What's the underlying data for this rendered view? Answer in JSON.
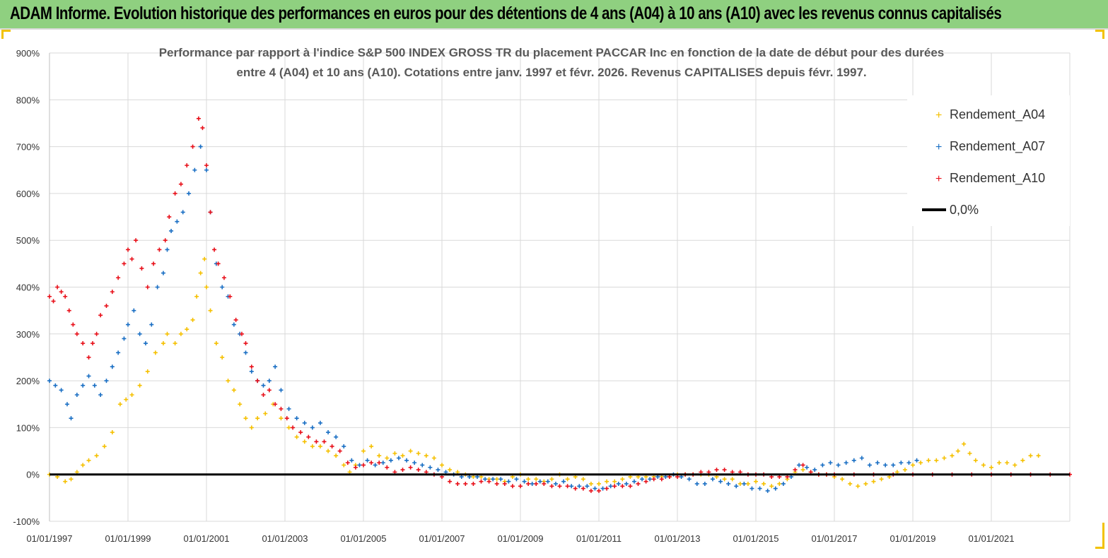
{
  "banner": {
    "title": "ADAM Informe. Evolution historique des performances en euros pour des détentions de 4 ans (A04) à 10 ans (A10) avec les revenus connus capitalisés"
  },
  "colors": {
    "banner_bg": "#8fd080",
    "A04": "#f5c000",
    "A07": "#1a6fc4",
    "A10": "#e8101a",
    "zero": "#000000",
    "grid": "#d9d9d9"
  },
  "chart_data": {
    "type": "scatter",
    "title_lines": [
      "Performance par rapport à l'indice S&P 500 INDEX GROSS TR  du placement PACCAR Inc en fonction de la date de début pour des durées",
      "entre 4 (A04) et 10 ans (A10).  Cotations entre janv. 1997 et févr. 2026. Revenus CAPITALISES depuis févr. 1997."
    ],
    "y_ticks": [
      "900%",
      "800%",
      "700%",
      "600%",
      "500%",
      "400%",
      "300%",
      "200%",
      "100%",
      "0%",
      "-100%"
    ],
    "x_ticks": [
      "01/01/1997",
      "01/01/1999",
      "01/01/2001",
      "01/01/2003",
      "01/01/2005",
      "01/01/2007",
      "01/01/2009",
      "01/01/2011",
      "01/01/2013",
      "01/01/2015",
      "01/01/2017",
      "01/01/2019",
      "01/01/2021"
    ],
    "ylim": [
      -100,
      900
    ],
    "xlim": [
      1997.0,
      2023.0
    ],
    "grid": true,
    "legend_position": "top-right",
    "legend": [
      "Rendement_A04",
      "Rendement_A07",
      "Rendement_A10",
      "0,0%"
    ],
    "series": [
      {
        "name": "Rendement_A04",
        "x": [
          1997.0,
          1997.2,
          1997.4,
          1997.55,
          1997.7,
          1997.85,
          1998.0,
          1998.2,
          1998.4,
          1998.6,
          1998.8,
          1998.95,
          1999.1,
          1999.3,
          1999.5,
          1999.7,
          1999.9,
          2000.0,
          2000.2,
          2000.35,
          2000.5,
          2000.65,
          2000.75,
          2000.85,
          2000.95,
          2001.0,
          2001.1,
          2001.25,
          2001.4,
          2001.55,
          2001.7,
          2001.85,
          2002.0,
          2002.15,
          2002.3,
          2002.5,
          2002.7,
          2002.9,
          2003.1,
          2003.3,
          2003.5,
          2003.7,
          2003.9,
          2004.1,
          2004.3,
          2004.5,
          2004.65,
          2004.8,
          2005.0,
          2005.2,
          2005.4,
          2005.6,
          2005.8,
          2006.0,
          2006.2,
          2006.4,
          2006.6,
          2006.8,
          2007.0,
          2007.2,
          2007.4,
          2007.6,
          2007.8,
          2008.0,
          2008.2,
          2008.4,
          2008.6,
          2008.8,
          2009.0,
          2009.2,
          2009.4,
          2009.6,
          2009.8,
          2010.0,
          2010.2,
          2010.4,
          2010.6,
          2010.8,
          2011.0,
          2011.2,
          2011.4,
          2011.6,
          2011.8,
          2012.0,
          2012.2,
          2012.4,
          2012.6,
          2012.8,
          2013.0,
          2013.2,
          2013.4,
          2013.6,
          2013.8,
          2014.0,
          2014.2,
          2014.4,
          2014.6,
          2014.8,
          2015.0,
          2015.2,
          2015.4,
          2015.6,
          2015.8,
          2016.0,
          2016.2,
          2016.4,
          2016.6,
          2016.8,
          2017.0,
          2017.2,
          2017.4,
          2017.6,
          2017.8,
          2018.0,
          2018.2,
          2018.4,
          2018.6,
          2018.8,
          2019.0,
          2019.2,
          2019.4,
          2019.6,
          2019.8,
          2020.0,
          2020.15,
          2020.3,
          2020.45,
          2020.6,
          2020.8,
          2021.0,
          2021.2,
          2021.4,
          2021.6,
          2021.8,
          2022.0,
          2022.2
        ],
        "y": [
          0,
          -5,
          -15,
          -10,
          5,
          20,
          30,
          40,
          60,
          90,
          150,
          160,
          170,
          190,
          220,
          260,
          280,
          300,
          280,
          300,
          310,
          330,
          380,
          430,
          460,
          400,
          350,
          280,
          250,
          200,
          180,
          150,
          120,
          100,
          120,
          130,
          150,
          120,
          100,
          80,
          70,
          60,
          60,
          50,
          40,
          20,
          5,
          20,
          50,
          60,
          40,
          35,
          45,
          40,
          50,
          45,
          40,
          35,
          20,
          10,
          5,
          0,
          -5,
          -5,
          -10,
          -10,
          -15,
          -5,
          0,
          -10,
          -10,
          -15,
          -10,
          0,
          -10,
          -5,
          -10,
          -20,
          -20,
          -15,
          -15,
          -10,
          -5,
          -5,
          -5,
          -5,
          -5,
          -5,
          0,
          0,
          0,
          0,
          0,
          -5,
          -10,
          -10,
          -20,
          -20,
          -15,
          -20,
          -25,
          -20,
          -10,
          5,
          10,
          5,
          0,
          0,
          -5,
          -10,
          -20,
          -25,
          -20,
          -15,
          -10,
          -5,
          5,
          10,
          20,
          25,
          30,
          30,
          35,
          40,
          50,
          65,
          45,
          30,
          20,
          15,
          25,
          25,
          20,
          30,
          40,
          40
        ]
      },
      {
        "name": "Rendement_A07",
        "x": [
          1997.0,
          1997.15,
          1997.3,
          1997.45,
          1997.55,
          1997.7,
          1997.85,
          1998.0,
          1998.15,
          1998.3,
          1998.45,
          1998.6,
          1998.75,
          1998.9,
          1999.0,
          1999.15,
          1999.3,
          1999.45,
          1999.6,
          1999.75,
          1999.9,
          2000.0,
          2000.1,
          2000.25,
          2000.4,
          2000.55,
          2000.7,
          2000.85,
          2001.0,
          2001.1,
          2001.25,
          2001.4,
          2001.55,
          2001.7,
          2001.85,
          2002.0,
          2002.15,
          2002.3,
          2002.45,
          2002.6,
          2002.75,
          2002.9,
          2003.1,
          2003.3,
          2003.5,
          2003.7,
          2003.9,
          2004.1,
          2004.3,
          2004.5,
          2004.7,
          2004.9,
          2005.1,
          2005.3,
          2005.5,
          2005.7,
          2005.9,
          2006.1,
          2006.3,
          2006.5,
          2006.7,
          2006.9,
          2007.1,
          2007.3,
          2007.5,
          2007.7,
          2007.9,
          2008.1,
          2008.3,
          2008.5,
          2008.7,
          2008.9,
          2009.1,
          2009.3,
          2009.5,
          2009.7,
          2009.9,
          2010.1,
          2010.3,
          2010.5,
          2010.7,
          2010.9,
          2011.1,
          2011.3,
          2011.5,
          2011.7,
          2011.9,
          2012.1,
          2012.3,
          2012.5,
          2012.7,
          2012.9,
          2013.1,
          2013.3,
          2013.5,
          2013.7,
          2013.9,
          2014.1,
          2014.3,
          2014.5,
          2014.7,
          2014.9,
          2015.1,
          2015.3,
          2015.5,
          2015.7,
          2015.9,
          2016.1,
          2016.3,
          2016.5,
          2016.7,
          2016.9,
          2017.1,
          2017.3,
          2017.5,
          2017.7,
          2017.9,
          2018.1,
          2018.3,
          2018.5,
          2018.7,
          2018.9,
          2019.1
        ],
        "y": [
          200,
          190,
          180,
          150,
          120,
          170,
          190,
          210,
          190,
          170,
          200,
          230,
          260,
          290,
          320,
          350,
          300,
          280,
          320,
          400,
          430,
          480,
          520,
          540,
          560,
          600,
          650,
          700,
          650,
          560,
          450,
          400,
          380,
          320,
          300,
          260,
          220,
          200,
          190,
          200,
          230,
          180,
          140,
          120,
          110,
          100,
          110,
          90,
          80,
          60,
          30,
          20,
          30,
          20,
          25,
          30,
          35,
          30,
          25,
          20,
          15,
          10,
          5,
          0,
          -5,
          -5,
          -5,
          -10,
          -10,
          -10,
          -15,
          -10,
          -15,
          -20,
          -15,
          -15,
          -20,
          -15,
          -25,
          -25,
          -25,
          -30,
          -30,
          -25,
          -20,
          -20,
          -15,
          -10,
          -10,
          -5,
          -5,
          0,
          -5,
          -10,
          -20,
          -20,
          -10,
          -15,
          -20,
          -25,
          -20,
          -30,
          -30,
          -35,
          -30,
          -20,
          -5,
          20,
          15,
          10,
          20,
          25,
          20,
          25,
          30,
          35,
          20,
          25,
          20,
          20,
          25,
          25,
          30
        ]
      },
      {
        "name": "Rendement_A10",
        "x": [
          1997.0,
          1997.1,
          1997.2,
          1997.3,
          1997.4,
          1997.5,
          1997.6,
          1997.7,
          1997.85,
          1998.0,
          1998.1,
          1998.2,
          1998.3,
          1998.45,
          1998.6,
          1998.75,
          1998.9,
          1999.0,
          1999.1,
          1999.2,
          1999.35,
          1999.5,
          1999.65,
          1999.8,
          1999.95,
          2000.05,
          2000.2,
          2000.35,
          2000.5,
          2000.65,
          2000.8,
          2000.9,
          2001.0,
          2001.1,
          2001.2,
          2001.3,
          2001.45,
          2001.6,
          2001.75,
          2001.9,
          2002.0,
          2002.15,
          2002.3,
          2002.45,
          2002.6,
          2002.75,
          2002.9,
          2003.05,
          2003.2,
          2003.4,
          2003.6,
          2003.8,
          2004.0,
          2004.2,
          2004.4,
          2004.6,
          2004.8,
          2005.0,
          2005.2,
          2005.4,
          2005.6,
          2005.8,
          2006.0,
          2006.2,
          2006.4,
          2006.6,
          2006.8,
          2007.0,
          2007.2,
          2007.4,
          2007.6,
          2007.8,
          2008.0,
          2008.2,
          2008.4,
          2008.6,
          2008.8,
          2009.0,
          2009.2,
          2009.4,
          2009.6,
          2009.8,
          2010.0,
          2010.2,
          2010.4,
          2010.6,
          2010.8,
          2011.0,
          2011.2,
          2011.4,
          2011.6,
          2011.8,
          2012.0,
          2012.2,
          2012.4,
          2012.6,
          2012.8,
          2013.0,
          2013.2,
          2013.4,
          2013.6,
          2013.8,
          2014.0,
          2014.2,
          2014.4,
          2014.6,
          2014.8,
          2015.0,
          2015.2,
          2015.4,
          2015.6,
          2015.8,
          2016.0,
          2016.2,
          2016.4,
          2016.6,
          2016.8,
          2017.0,
          2017.5,
          2018.0,
          2018.5,
          2019.0,
          2019.5,
          2020.0,
          2020.5,
          2021.0,
          2021.5,
          2022.0,
          2022.5,
          2023.0
        ],
        "y": [
          380,
          370,
          400,
          390,
          380,
          350,
          320,
          300,
          280,
          250,
          280,
          300,
          340,
          360,
          390,
          420,
          450,
          480,
          460,
          500,
          440,
          400,
          450,
          480,
          500,
          550,
          600,
          620,
          660,
          700,
          760,
          740,
          660,
          560,
          480,
          450,
          420,
          380,
          330,
          300,
          280,
          230,
          200,
          170,
          180,
          150,
          140,
          120,
          100,
          90,
          80,
          70,
          70,
          60,
          50,
          25,
          15,
          20,
          25,
          25,
          15,
          5,
          10,
          15,
          10,
          5,
          0,
          -5,
          -15,
          -20,
          -20,
          -20,
          -15,
          -15,
          -20,
          -20,
          -25,
          -25,
          -20,
          -20,
          -20,
          -25,
          -25,
          -25,
          -30,
          -30,
          -35,
          -35,
          -30,
          -25,
          -25,
          -25,
          -20,
          -15,
          -10,
          -10,
          -5,
          -5,
          0,
          0,
          5,
          5,
          10,
          10,
          5,
          5,
          0,
          0,
          0,
          -5,
          -5,
          -5,
          10,
          20,
          5,
          0,
          0,
          0,
          0,
          0,
          0,
          0,
          0,
          0,
          0,
          0,
          0,
          0,
          0,
          0
        ]
      }
    ]
  }
}
